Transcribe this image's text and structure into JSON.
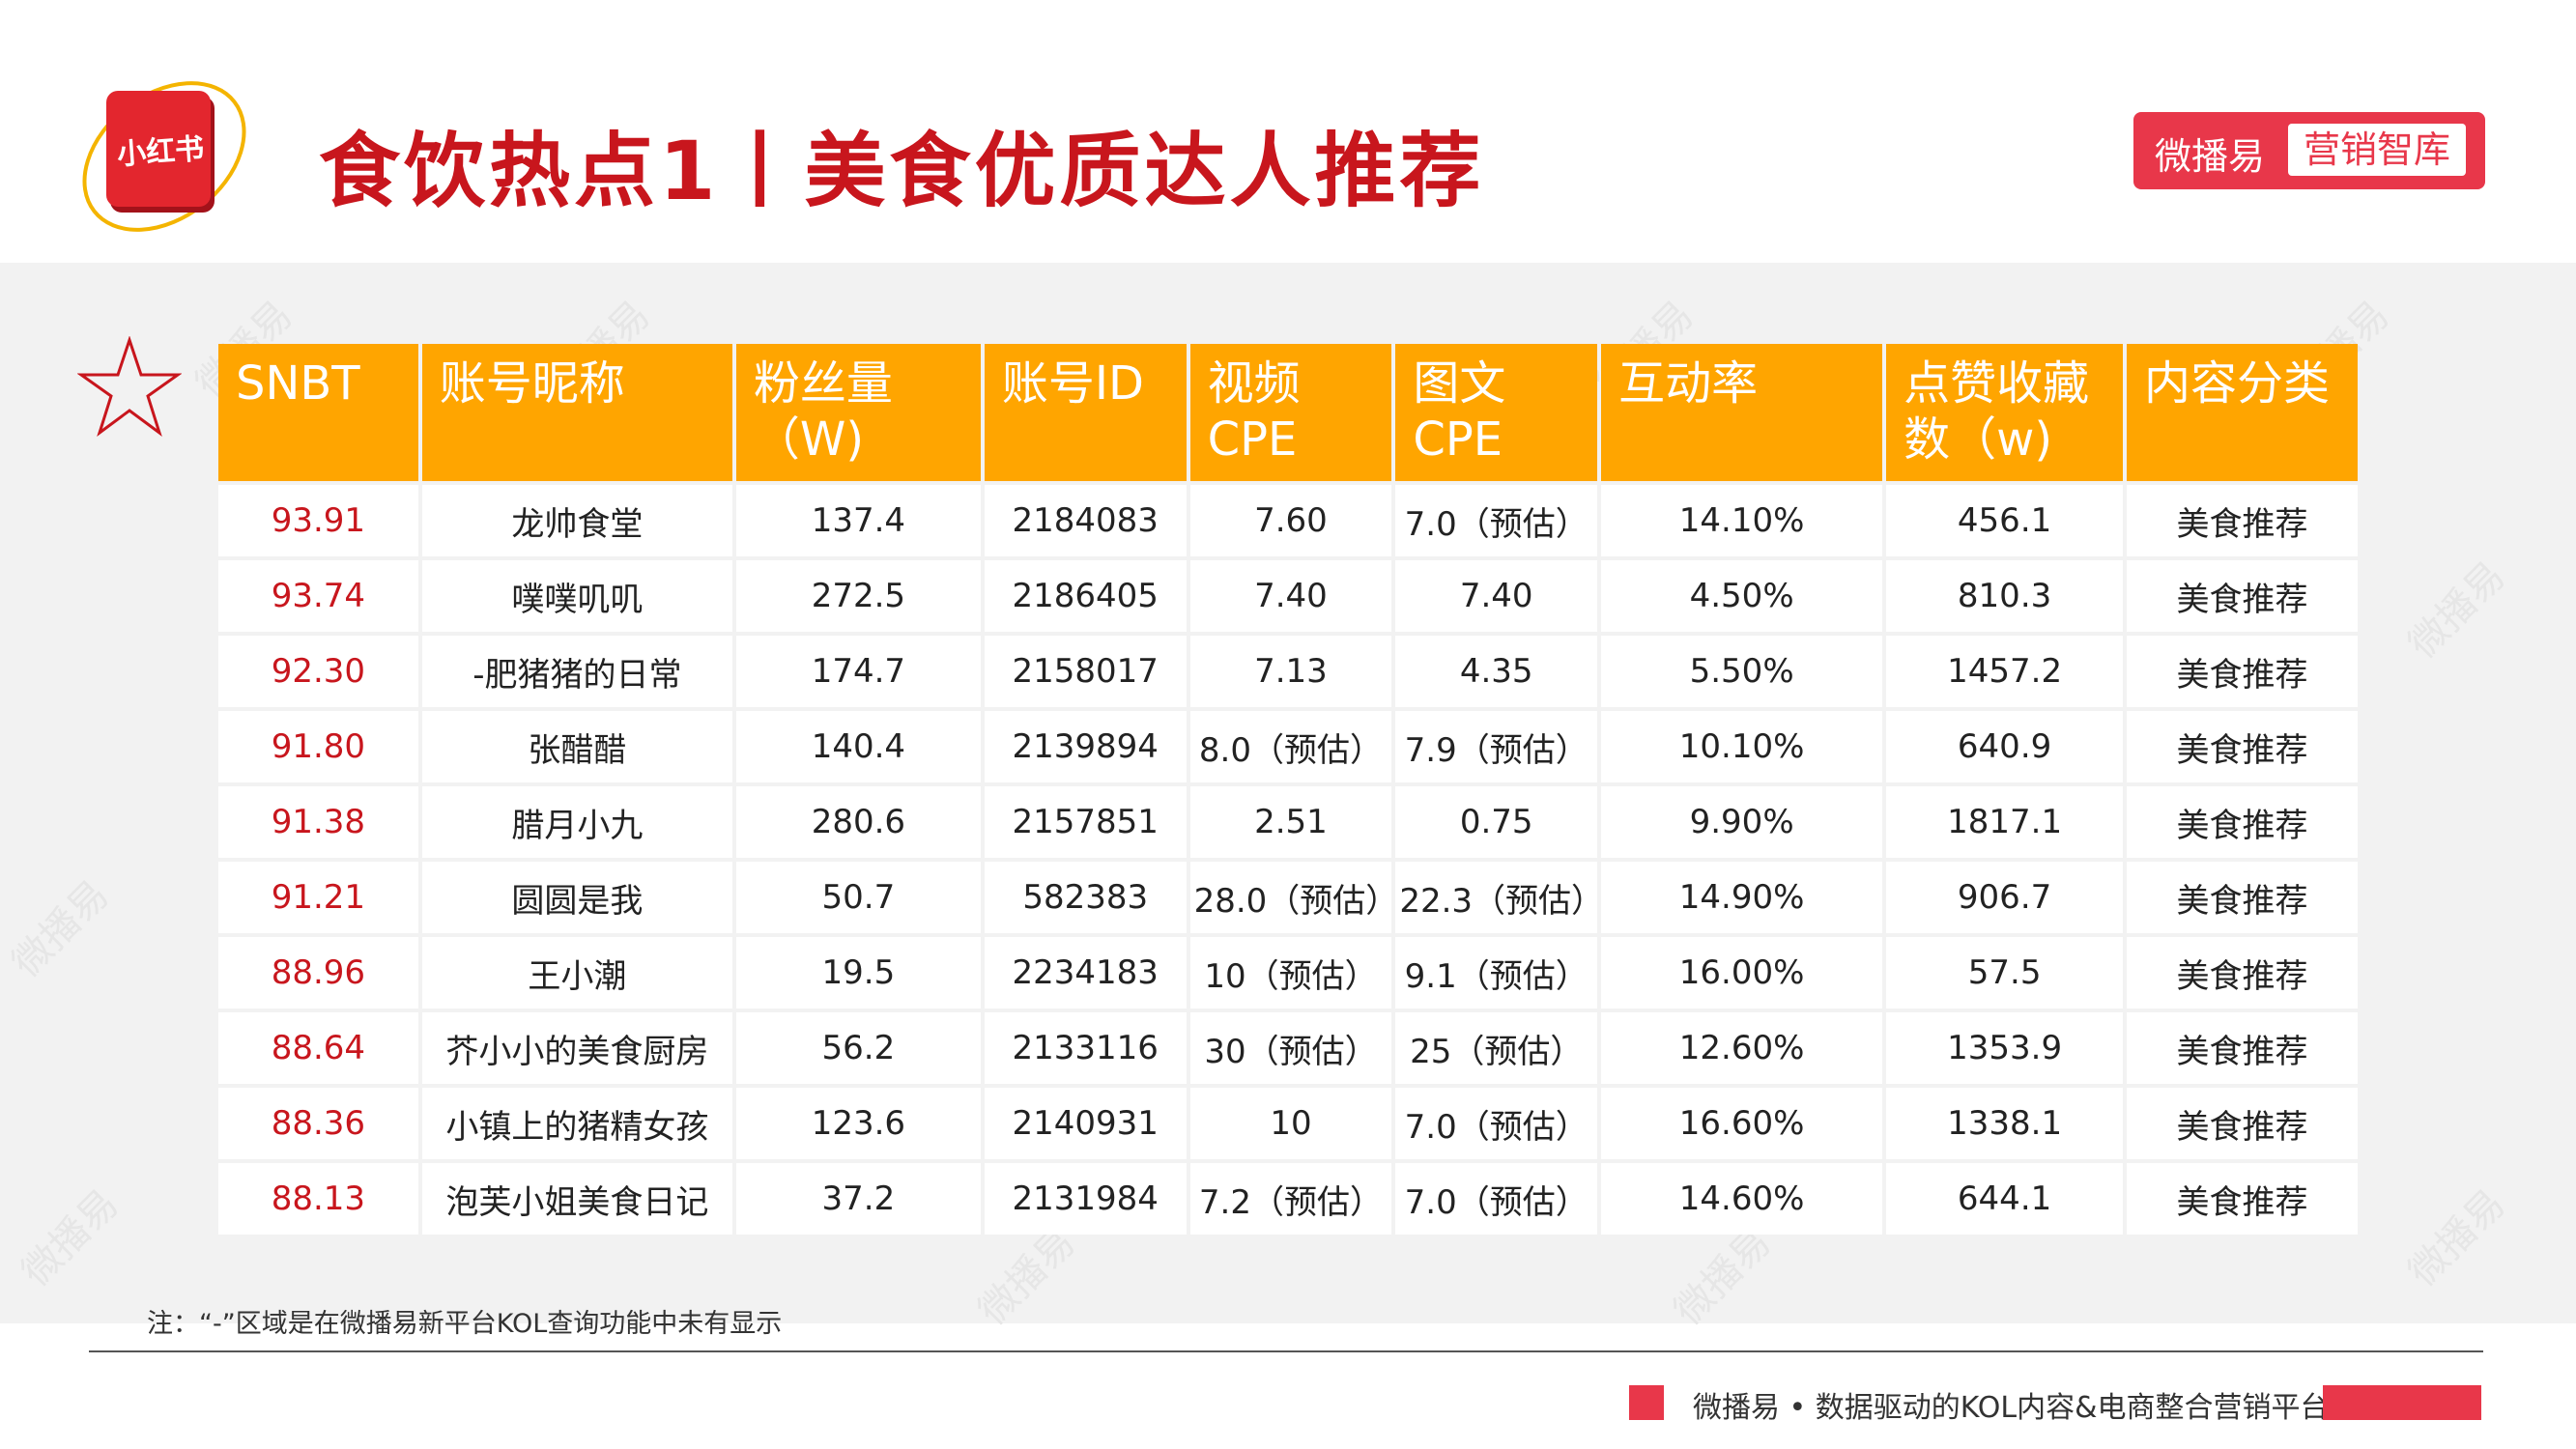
{
  "header": {
    "logo_text": "小红书",
    "title": "食饮热点1丨美食优质达人推荐",
    "brand_name": "微播易",
    "brand_tag": "营销智库"
  },
  "watermark_text": "微播易",
  "table": {
    "headers": [
      "SNBT",
      "账号昵称",
      "粉丝量\n（W)",
      "账号ID",
      "视频\nCPE",
      "图文\nCPE",
      "互动率",
      "点赞收藏\n数（w)",
      "内容分类"
    ],
    "rows": [
      [
        "93.91",
        "龙帅食堂",
        "137.4",
        "2184083",
        "7.60",
        "7.0（预估）",
        "14.10%",
        "456.1",
        "美食推荐"
      ],
      [
        "93.74",
        "噗噗叽叽",
        "272.5",
        "2186405",
        "7.40",
        "7.40",
        "4.50%",
        "810.3",
        "美食推荐"
      ],
      [
        "92.30",
        "-肥猪猪的日常",
        "174.7",
        "2158017",
        "7.13",
        "4.35",
        "5.50%",
        "1457.2",
        "美食推荐"
      ],
      [
        "91.80",
        "张醋醋",
        "140.4",
        "2139894",
        "8.0（预估）",
        "7.9（预估）",
        "10.10%",
        "640.9",
        "美食推荐"
      ],
      [
        "91.38",
        "腊月小九",
        "280.6",
        "2157851",
        "2.51",
        "0.75",
        "9.90%",
        "1817.1",
        "美食推荐"
      ],
      [
        "91.21",
        "圆圆是我",
        "50.7",
        "582383",
        "28.0（预估）",
        "22.3（预估）",
        "14.90%",
        "906.7",
        "美食推荐"
      ],
      [
        "88.96",
        "王小潮",
        "19.5",
        "2234183",
        "10（预估）",
        "9.1（预估）",
        "16.00%",
        "57.5",
        "美食推荐"
      ],
      [
        "88.64",
        "芥小小的美食厨房",
        "56.2",
        "2133116",
        "30（预估）",
        "25（预估）",
        "12.60%",
        "1353.9",
        "美食推荐"
      ],
      [
        "88.36",
        "小镇上的猪精女孩",
        "123.6",
        "2140931",
        "10",
        "7.0（预估）",
        "16.60%",
        "1338.1",
        "美食推荐"
      ],
      [
        "88.13",
        "泡芙小姐美食日记",
        "37.2",
        "2131984",
        "7.2（预估）",
        "7.0（预估）",
        "14.60%",
        "644.1",
        "美食推荐"
      ]
    ]
  },
  "note": "注：“-”区域是在微播易新平台KOL查询功能中未有显示",
  "footer": {
    "slogan": "微播易 • 数据驱动的KOL内容&电商整合营销平台"
  },
  "colors": {
    "title_red": "#c8161d",
    "header_orange": "#ffa500",
    "brand_red": "#e8374a",
    "score_red": "#c8161d"
  }
}
